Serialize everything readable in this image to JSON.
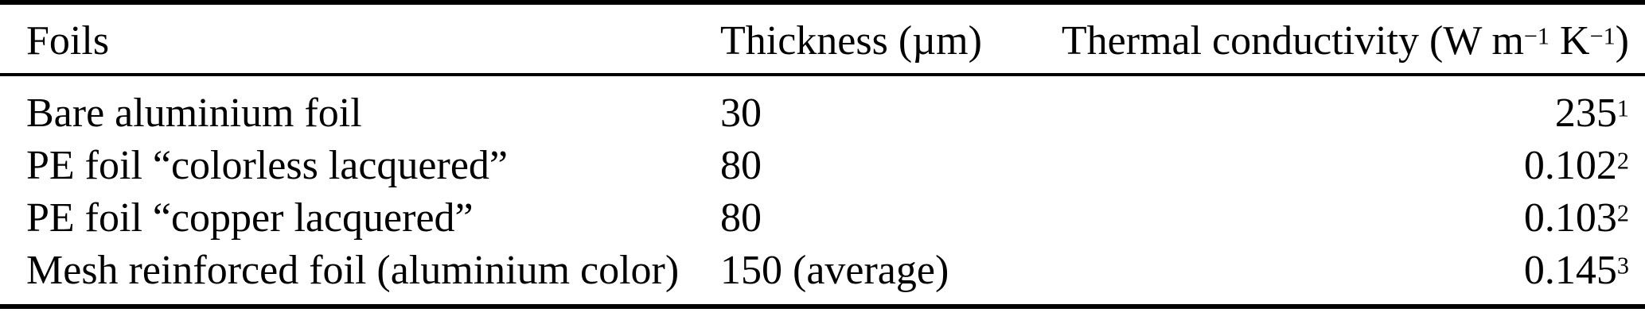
{
  "colors": {
    "background": "#ffffff",
    "text": "#000000",
    "rule": "#000000"
  },
  "table": {
    "header": {
      "foils": "Foils",
      "thickness": "Thickness (µm)",
      "conductivity_parts": [
        {
          "text": "Thermal conductivity (W m",
          "sup": false
        },
        {
          "text": "−1",
          "sup": true
        },
        {
          "text": " K",
          "sup": false
        },
        {
          "text": "−1",
          "sup": true
        },
        {
          "text": ")",
          "sup": false
        }
      ]
    },
    "rows": [
      {
        "foil": "Bare aluminium foil",
        "thickness": "30",
        "conductivity": "235",
        "footnote": "1"
      },
      {
        "foil": "PE foil “colorless lacquered”",
        "thickness": "80",
        "conductivity": "0.102",
        "footnote": "2"
      },
      {
        "foil": "PE foil “copper lacquered”",
        "thickness": "80",
        "conductivity": "0.103",
        "footnote": "2"
      },
      {
        "foil": "Mesh reinforced foil (aluminium color)",
        "thickness": "150 (average)",
        "conductivity": "0.145",
        "footnote": "3"
      }
    ]
  }
}
